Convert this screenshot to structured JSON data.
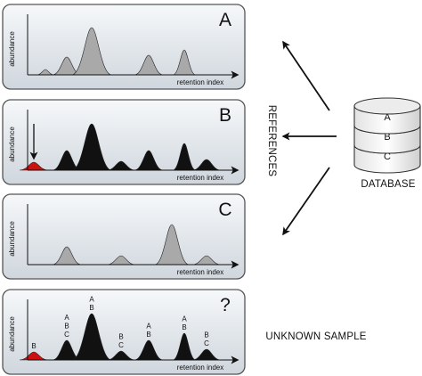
{
  "panels": [
    {
      "id": "A",
      "letter": "A",
      "y_label": "abundance",
      "x_label": "retention index",
      "fill": "#a9a9a9",
      "peaks": [
        {
          "x": 20,
          "h": 6,
          "w": 3
        },
        {
          "x": 44,
          "h": 20,
          "w": 5
        },
        {
          "x": 72,
          "h": 53,
          "w": 7
        },
        {
          "x": 136,
          "h": 22,
          "w": 5
        },
        {
          "x": 176,
          "h": 28,
          "w": 4
        }
      ]
    },
    {
      "id": "B",
      "letter": "B",
      "y_label": "abundance",
      "x_label": "retention index",
      "fill": "#111111",
      "peaks": [
        {
          "x": 7,
          "h": 9,
          "w": 5,
          "color": "#cc1111"
        },
        {
          "x": 44,
          "h": 22,
          "w": 5
        },
        {
          "x": 72,
          "h": 52,
          "w": 7
        },
        {
          "x": 105,
          "h": 10,
          "w": 5
        },
        {
          "x": 136,
          "h": 22,
          "w": 5
        },
        {
          "x": 176,
          "h": 30,
          "w": 4
        },
        {
          "x": 201,
          "h": 12,
          "w": 5
        }
      ]
    },
    {
      "id": "C",
      "letter": "C",
      "y_label": "abundance",
      "x_label": "retention index",
      "fill": "#a9a9a9",
      "peaks": [
        {
          "x": 44,
          "h": 20,
          "w": 5
        },
        {
          "x": 105,
          "h": 10,
          "w": 5
        },
        {
          "x": 162,
          "h": 45,
          "w": 6
        },
        {
          "x": 201,
          "h": 10,
          "w": 5
        }
      ]
    },
    {
      "id": "unknown",
      "letter": "?",
      "y_label": "abundance",
      "x_label": "retention index",
      "fill": "#111111",
      "peaks": [
        {
          "x": 7,
          "h": 9,
          "w": 5,
          "color": "#cc1111",
          "labels": [
            "B"
          ]
        },
        {
          "x": 44,
          "h": 22,
          "w": 5,
          "labels": [
            "A",
            "B",
            "C"
          ]
        },
        {
          "x": 72,
          "h": 52,
          "w": 7,
          "labels": [
            "A",
            "B"
          ]
        },
        {
          "x": 105,
          "h": 10,
          "w": 5,
          "labels": [
            "B",
            "C"
          ]
        },
        {
          "x": 136,
          "h": 22,
          "w": 5,
          "labels": [
            "A",
            "B"
          ]
        },
        {
          "x": 176,
          "h": 30,
          "w": 4,
          "labels": [
            "A",
            "B"
          ]
        },
        {
          "x": 201,
          "h": 12,
          "w": 5,
          "labels": [
            "B",
            "C"
          ]
        }
      ]
    }
  ],
  "references_label": "REFERENCES",
  "database": {
    "label": "DATABASE",
    "layers": [
      "A",
      "B",
      "C"
    ]
  },
  "unknown_sample_label": "UNKNOWN SAMPLE",
  "colors": {
    "panel_border": "#555555",
    "panel_gradient_top": "#f6f8fa",
    "panel_gradient_bottom": "#cfd6dd",
    "reference_peak": "#a9a9a9",
    "sample_peak": "#111111",
    "highlight_peak": "#cc1111"
  }
}
